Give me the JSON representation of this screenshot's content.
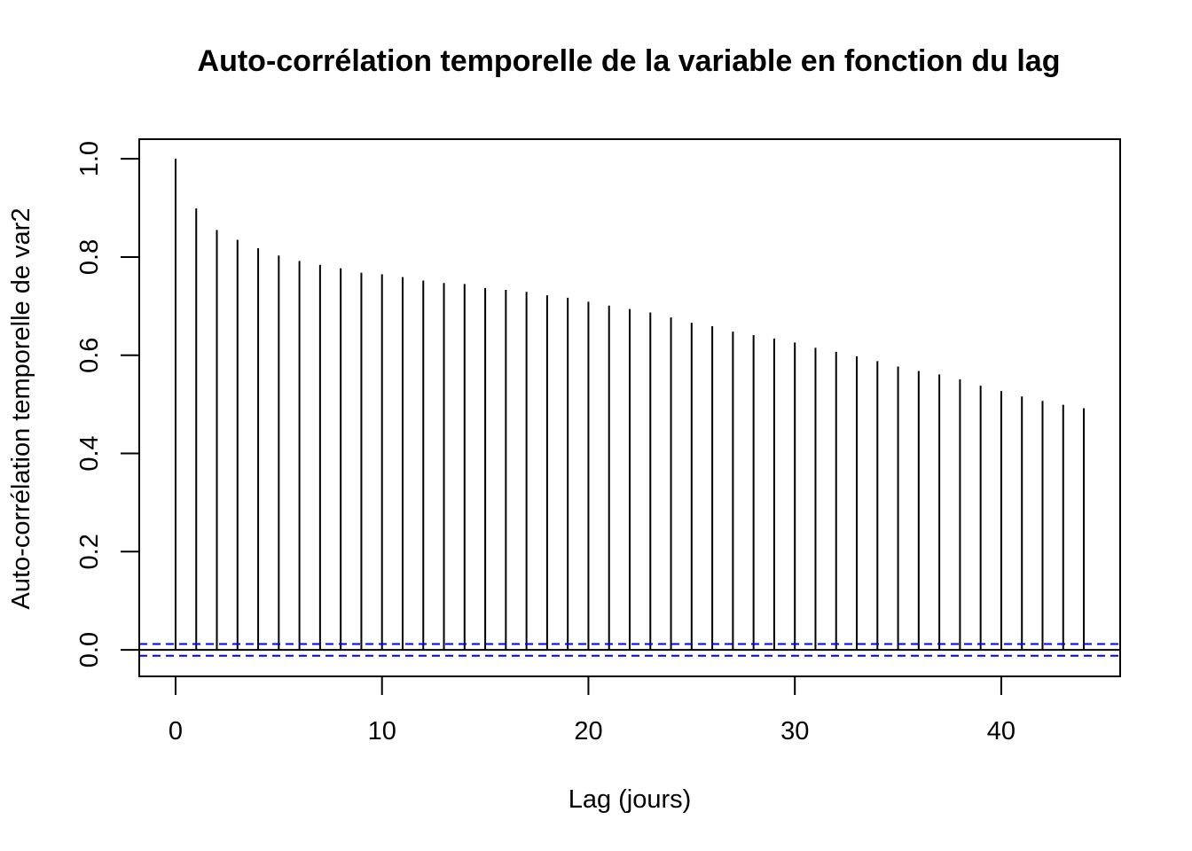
{
  "chart_data": {
    "type": "bar",
    "title": "Auto-corrélation temporelle de la variable en fonction du lag",
    "xlabel": "Lag (jours)",
    "ylabel": "Auto-corrélation temporelle de var2",
    "xlim": [
      -1.76,
      45.76
    ],
    "ylim": [
      -0.054,
      1.04
    ],
    "x_ticks": [
      0,
      10,
      20,
      30,
      40
    ],
    "y_ticks": [
      0.0,
      0.2,
      0.4,
      0.6,
      0.8,
      1.0
    ],
    "x_tick_labels": [
      "0",
      "10",
      "20",
      "30",
      "40"
    ],
    "y_tick_labels": [
      "0.0",
      "0.2",
      "0.4",
      "0.6",
      "0.8",
      "1.0"
    ],
    "lags": [
      0,
      1,
      2,
      3,
      4,
      5,
      6,
      7,
      8,
      9,
      10,
      11,
      12,
      13,
      14,
      15,
      16,
      17,
      18,
      19,
      20,
      21,
      22,
      23,
      24,
      25,
      26,
      27,
      28,
      29,
      30,
      31,
      32,
      33,
      34,
      35,
      36,
      37,
      38,
      39,
      40,
      41,
      42,
      43,
      44
    ],
    "values": [
      1.0,
      0.899,
      0.855,
      0.835,
      0.818,
      0.803,
      0.792,
      0.784,
      0.777,
      0.768,
      0.765,
      0.759,
      0.752,
      0.747,
      0.745,
      0.737,
      0.733,
      0.729,
      0.722,
      0.717,
      0.709,
      0.701,
      0.694,
      0.687,
      0.677,
      0.666,
      0.659,
      0.648,
      0.641,
      0.634,
      0.626,
      0.615,
      0.607,
      0.598,
      0.588,
      0.577,
      0.568,
      0.561,
      0.551,
      0.538,
      0.527,
      0.516,
      0.507,
      0.499,
      0.492
    ],
    "confidence_bound": 0.012,
    "grid": false,
    "colors": {
      "bars": "#000000",
      "confidence": "#0000ff",
      "zero_line": "#000000"
    }
  }
}
